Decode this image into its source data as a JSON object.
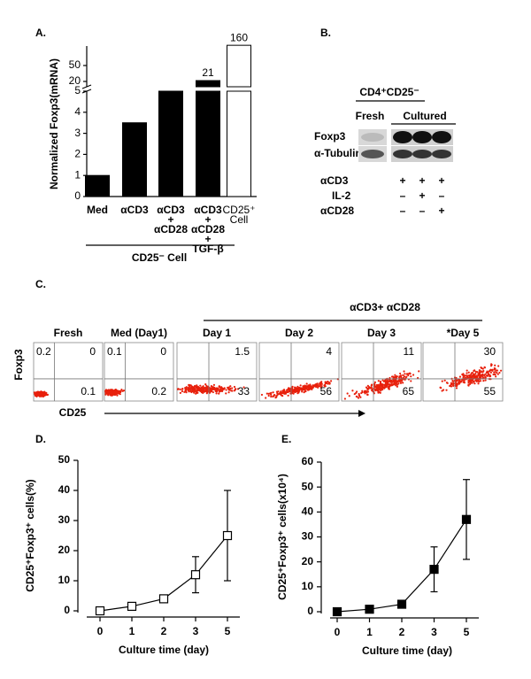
{
  "chart_data": [
    {
      "type": "bar",
      "label": "A.",
      "y_label": "Normalized Foxp3(mRNA)",
      "categories": [
        [
          "Med"
        ],
        [
          "αCD3"
        ],
        [
          "αCD3",
          "+",
          "αCD28"
        ],
        [
          "αCD3",
          "+",
          "αCD28",
          "+",
          "TGF-β"
        ],
        [
          "CD25⁺",
          "Cell"
        ]
      ],
      "values": [
        1,
        3.5,
        5,
        21,
        160
      ],
      "show_value_label": [
        false,
        false,
        false,
        true,
        true
      ],
      "colors": [
        "#000000",
        "#000000",
        "#000000",
        "#000000",
        "#ffffff"
      ],
      "group_label": "CD25⁻ Cell",
      "ylim": [
        0,
        5
      ],
      "y_upper_lim": [
        20,
        50
      ],
      "axis_break": true,
      "yticks": [
        0,
        1,
        2,
        3,
        4,
        5,
        20,
        50
      ]
    },
    {
      "type": "line",
      "label": "D.",
      "y_label": "CD25⁺Foxp3⁺ cells(%)",
      "x_label": "Culture time (day)",
      "categories": [
        "0",
        "1",
        "2",
        "3",
        "5"
      ],
      "marker": "open-square",
      "values": [
        0,
        1.5,
        4,
        12,
        25
      ],
      "errors": [
        0,
        0.5,
        0.5,
        6,
        15
      ],
      "ylim": [
        0,
        50
      ],
      "yticks": [
        0,
        10,
        20,
        30,
        40,
        50
      ]
    },
    {
      "type": "line",
      "label": "E.",
      "y_label": "CD25⁺Foxp3⁺ cells(x10⁴)",
      "x_label": "Culture time (day)",
      "categories": [
        "0",
        "1",
        "2",
        "3",
        "5"
      ],
      "marker": "filled-square",
      "values": [
        0,
        1,
        3,
        17,
        37
      ],
      "errors": [
        0,
        0.5,
        0.5,
        9,
        16
      ],
      "ylim": [
        0,
        60
      ],
      "yticks": [
        0,
        10,
        20,
        30,
        40,
        50,
        60
      ]
    }
  ],
  "blot": {
    "label": "B.",
    "title": "CD4⁺CD25⁻",
    "columns": [
      "Fresh",
      "Cultured"
    ],
    "rows": [
      "Foxp3",
      "α-Tubulin"
    ],
    "treatments": [
      {
        "name": "αCD3",
        "signs": [
          "+",
          "+",
          "+"
        ]
      },
      {
        "name": "IL-2",
        "signs": [
          "–",
          "+",
          "–"
        ]
      },
      {
        "name": "αCD28",
        "signs": [
          "–",
          "–",
          "+"
        ]
      }
    ]
  },
  "flow": {
    "label": "C.",
    "header": "αCD3+ αCD28",
    "y_label": "Foxp3",
    "x_label": "CD25",
    "plots": [
      {
        "title": "Fresh",
        "ul": 0.2,
        "ur": 0,
        "lr": 0.1
      },
      {
        "title": "Med (Day1)",
        "ul": 0.1,
        "ur": 0,
        "lr": 0.2
      },
      {
        "title": "Day 1",
        "ur": 1.5,
        "lr": 33
      },
      {
        "title": "Day 2",
        "ur": 4,
        "lr": 56
      },
      {
        "title": "Day 3",
        "ur": 11,
        "lr": 65
      },
      {
        "title": "*Day 5",
        "ur": 30,
        "lr": 55
      }
    ]
  }
}
